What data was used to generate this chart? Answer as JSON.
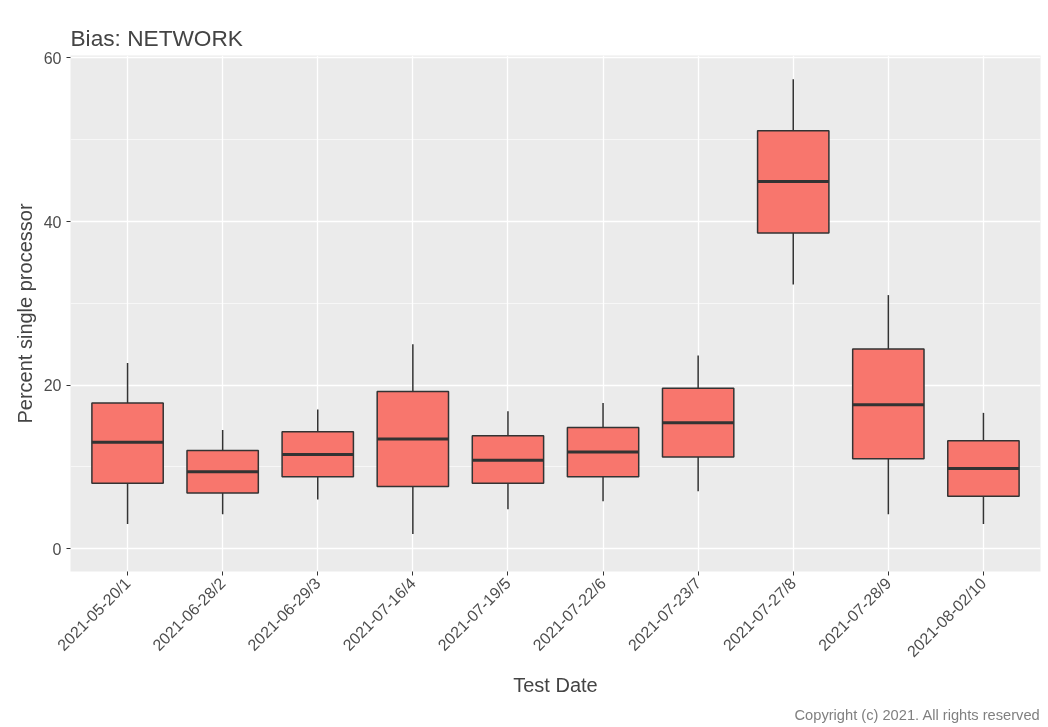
{
  "chart_data": {
    "type": "box",
    "title": "Bias: NETWORK",
    "xlabel": "Test Date",
    "ylabel": "Percent single processor",
    "categories": [
      "2021-05-20/1",
      "2021-06-28/2",
      "2021-06-29/3",
      "2021-07-16/4",
      "2021-07-19/5",
      "2021-07-22/6",
      "2021-07-23/7",
      "2021-07-27/8",
      "2021-07-28/9",
      "2021-08-02/10"
    ],
    "series": [
      {
        "color": "#f8766d",
        "boxes": [
          {
            "low": 3,
            "q1": 8,
            "median": 13,
            "q3": 17.8,
            "high": 22.7
          },
          {
            "low": 4.2,
            "q1": 6.8,
            "median": 9.4,
            "q3": 12,
            "high": 14.5
          },
          {
            "low": 6,
            "q1": 8.8,
            "median": 11.5,
            "q3": 14.3,
            "high": 17
          },
          {
            "low": 1.8,
            "q1": 7.6,
            "median": 13.4,
            "q3": 19.2,
            "high": 25
          },
          {
            "low": 4.8,
            "q1": 8,
            "median": 10.8,
            "q3": 13.8,
            "high": 16.8
          },
          {
            "low": 5.8,
            "q1": 8.8,
            "median": 11.8,
            "q3": 14.8,
            "high": 17.8
          },
          {
            "low": 7,
            "q1": 11.2,
            "median": 15.4,
            "q3": 19.6,
            "high": 23.6
          },
          {
            "low": 32.3,
            "q1": 38.6,
            "median": 44.9,
            "q3": 51.1,
            "high": 57.4
          },
          {
            "low": 4.2,
            "q1": 11,
            "median": 17.6,
            "q3": 24.4,
            "high": 31
          },
          {
            "low": 3,
            "q1": 6.4,
            "median": 9.8,
            "q3": 13.2,
            "high": 16.6
          }
        ]
      }
    ],
    "ylim": [
      -2.8,
      60.3
    ],
    "yticks": [
      0,
      20,
      40,
      60
    ],
    "grid": true,
    "annotations": [
      "Copyright (c) 2021. All rights reserved"
    ]
  }
}
